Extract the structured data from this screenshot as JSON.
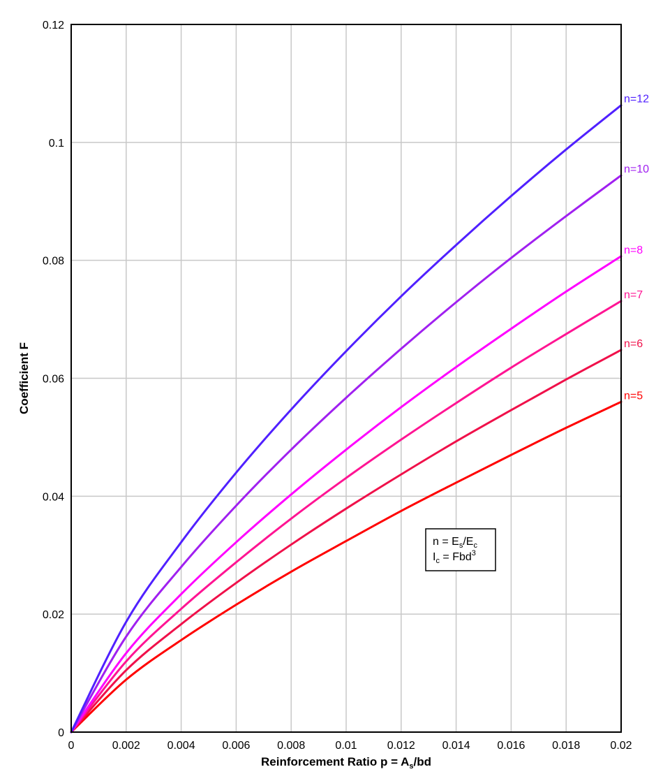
{
  "chart_data": {
    "type": "line",
    "title": "",
    "xlabel": "Reinforcement Ratio p = A",
    "xlabel_sub": "s",
    "xlabel_tail": "/bd",
    "ylabel": "Coefficient F",
    "xlim": [
      0,
      0.02
    ],
    "ylim": [
      0,
      0.12
    ],
    "xticks": [
      0,
      0.002,
      0.004,
      0.006,
      0.008,
      0.01,
      0.012,
      0.014,
      0.016,
      0.018,
      0.02
    ],
    "xtick_labels": [
      "0",
      "0.002",
      "0.004",
      "0.006",
      "0.008",
      "0.01",
      "0.012",
      "0.014",
      "0.016",
      "0.018",
      "0.02"
    ],
    "yticks": [
      0,
      0.02,
      0.04,
      0.06,
      0.08,
      0.1,
      0.12
    ],
    "ytick_labels": [
      "0",
      "0.02",
      "0.04",
      "0.06",
      "0.08",
      "0.1",
      "0.12"
    ],
    "grid": true,
    "x": [
      0,
      0.002,
      0.004,
      0.006,
      0.008,
      0.01,
      0.012,
      0.014,
      0.016,
      0.018,
      0.02
    ],
    "series": [
      {
        "name": "n=5",
        "color": "#ff0000",
        "n": 5,
        "values": [
          0,
          0.0089,
          0.0156,
          0.0216,
          0.0272,
          0.0324,
          0.0375,
          0.0423,
          0.047,
          0.0516,
          0.056
        ]
      },
      {
        "name": "n=6",
        "color": "#f0104a",
        "n": 6,
        "values": [
          0,
          0.0105,
          0.0183,
          0.0253,
          0.0318,
          0.0379,
          0.0437,
          0.0493,
          0.0546,
          0.0598,
          0.0648
        ]
      },
      {
        "name": "n=7",
        "color": "#ff1493",
        "n": 7,
        "values": [
          0,
          0.012,
          0.0209,
          0.0288,
          0.0362,
          0.0431,
          0.0496,
          0.0558,
          0.0618,
          0.0675,
          0.0731
        ]
      },
      {
        "name": "n=8",
        "color": "#ff00ff",
        "n": 8,
        "values": [
          0,
          0.0134,
          0.0234,
          0.0322,
          0.0403,
          0.0479,
          0.0551,
          0.0619,
          0.0684,
          0.0747,
          0.0807
        ]
      },
      {
        "name": "n=10",
        "color": "#a020f0",
        "n": 10,
        "values": [
          0,
          0.0162,
          0.028,
          0.0384,
          0.0479,
          0.0567,
          0.065,
          0.0729,
          0.0804,
          0.0875,
          0.0944
        ]
      },
      {
        "name": "n=12",
        "color": "#5020ff",
        "n": 12,
        "values": [
          0,
          0.0187,
          0.0322,
          0.044,
          0.0547,
          0.0646,
          0.0739,
          0.0826,
          0.0909,
          0.0988,
          0.1063
        ]
      }
    ],
    "annotation": {
      "line1_pre": "n = E",
      "line1_sub1": "s",
      "line1_mid": "/E",
      "line1_sub2": "c",
      "line2_pre": "I",
      "line2_sub": "c",
      "line2_mid": " = Fbd",
      "line2_sup": "3"
    }
  }
}
